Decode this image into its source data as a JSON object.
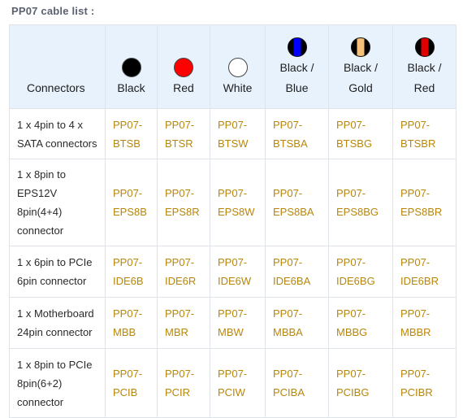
{
  "title": "PP07 cable list :",
  "table": {
    "columns": [
      {
        "label": "Connectors"
      },
      {
        "label": "Black",
        "swatch": {
          "type": "solid",
          "color": "#000000"
        }
      },
      {
        "label": "Red",
        "swatch": {
          "type": "solid",
          "color": "#ff0000"
        }
      },
      {
        "label": "White",
        "swatch": {
          "type": "solid",
          "color": "#ffffff"
        }
      },
      {
        "label": "Black /\nBlue",
        "swatch": {
          "type": "stripe",
          "outer": "#000000",
          "inner": "#0000ff"
        }
      },
      {
        "label": "Black /\nGold",
        "swatch": {
          "type": "stripe",
          "outer": "#000000",
          "inner": "#f5c078"
        }
      },
      {
        "label": "Black /\nRed",
        "swatch": {
          "type": "stripe",
          "outer": "#000000",
          "inner": "#e00000"
        }
      }
    ],
    "rows": [
      {
        "connector": "1 x 4pin to 4 x SATA connectors",
        "parts": [
          "PP07-BTSB",
          "PP07-BTSR",
          "PP07-BTSW",
          "PP07-BTSBA",
          "PP07-BTSBG",
          "PP07-BTSBR"
        ]
      },
      {
        "connector": "1 x 8pin to EPS12V 8pin(4+4) connector",
        "parts": [
          "PP07-EPS8B",
          "PP07-EPS8R",
          "PP07-EPS8W",
          "PP07-EPS8BA",
          "PP07-EPS8BG",
          "PP07-EPS8BR"
        ]
      },
      {
        "connector": "1 x 6pin to PCIe 6pin connector",
        "parts": [
          "PP07-IDE6B",
          "PP07-IDE6R",
          "PP07-IDE6W",
          "PP07-IDE6BA",
          "PP07-IDE6BG",
          "PP07-IDE6BR"
        ]
      },
      {
        "connector": "1 x Motherboard 24pin connector",
        "parts": [
          "PP07-MBB",
          "PP07-MBR",
          "PP07-MBW",
          "PP07-MBBA",
          "PP07-MBBG",
          "PP07-MBBR"
        ]
      },
      {
        "connector": "1 x 8pin to PCIe 8pin(6+2) connector",
        "parts": [
          "PP07-PCIB",
          "PP07-PCIR",
          "PP07-PCIW",
          "PP07-PCIBA",
          "PP07-PCIBG",
          "PP07-PCIBR"
        ]
      }
    ]
  }
}
